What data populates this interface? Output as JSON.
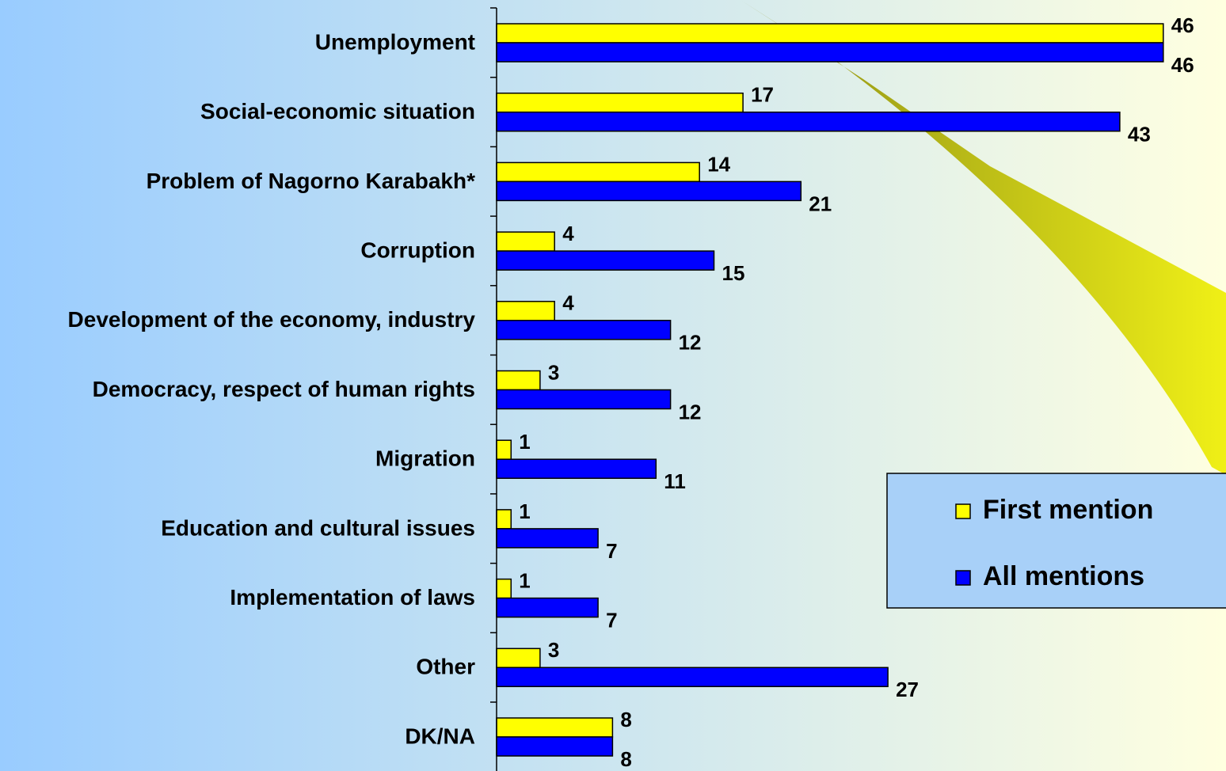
{
  "chart_data": {
    "type": "hbar",
    "categories": [
      "Unemployment",
      "Social-economic situation",
      "Problem of Nagorno Karabakh*",
      "Corruption",
      "Development of the economy, industry",
      "Democracy, respect of human rights",
      "Migration",
      "Education and cultural issues",
      "Implementation of laws",
      "Other",
      "DK/NA"
    ],
    "series": [
      {
        "name": "First mention",
        "color": "#ffff00",
        "values": [
          46,
          17,
          14,
          4,
          4,
          3,
          1,
          1,
          1,
          3,
          8
        ]
      },
      {
        "name": "All mentions",
        "color": "#0000ff",
        "values": [
          46,
          43,
          21,
          15,
          12,
          12,
          11,
          7,
          7,
          27,
          8
        ]
      }
    ],
    "xlim": [
      0,
      50
    ],
    "legend": "right"
  }
}
